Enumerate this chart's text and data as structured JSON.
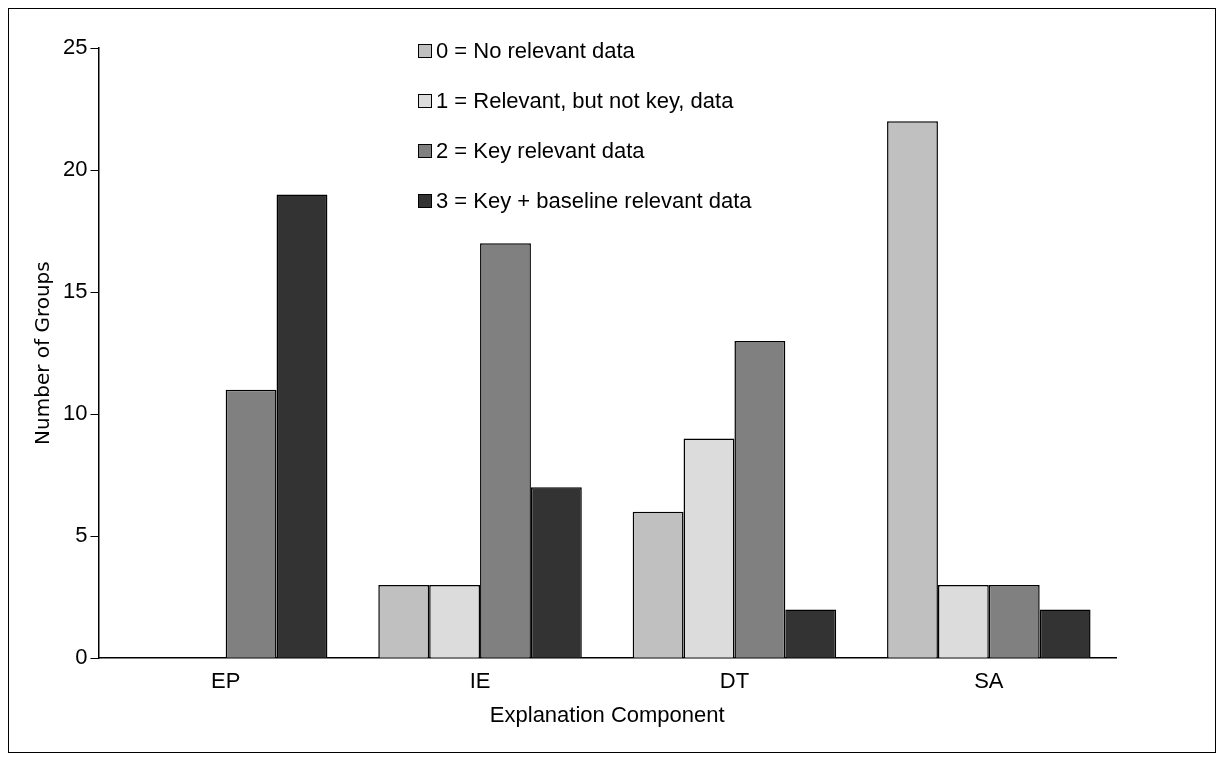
{
  "chart_data": {
    "type": "bar",
    "xlabel": "Explanation Component",
    "ylabel": "Number of Groups",
    "categories": [
      "EP",
      "IE",
      "DT",
      "SA"
    ],
    "series": [
      {
        "name": "0 = No relevant data",
        "color": "#c0c0c0",
        "values": [
          0,
          3,
          6,
          22
        ]
      },
      {
        "name": "1 = Relevant, but not key, data",
        "color": "#dcdcdc",
        "values": [
          0,
          3,
          9,
          3
        ]
      },
      {
        "name": "2 = Key relevant data",
        "color": "#808080",
        "values": [
          11,
          17,
          13,
          3
        ]
      },
      {
        "name": "3 = Key + baseline relevant data",
        "color": "#333333",
        "values": [
          19,
          7,
          2,
          2
        ]
      }
    ],
    "ylim": [
      0,
      25
    ],
    "yticks": [
      0,
      5,
      10,
      15,
      20,
      25
    ],
    "grid": false,
    "legend": "top"
  }
}
